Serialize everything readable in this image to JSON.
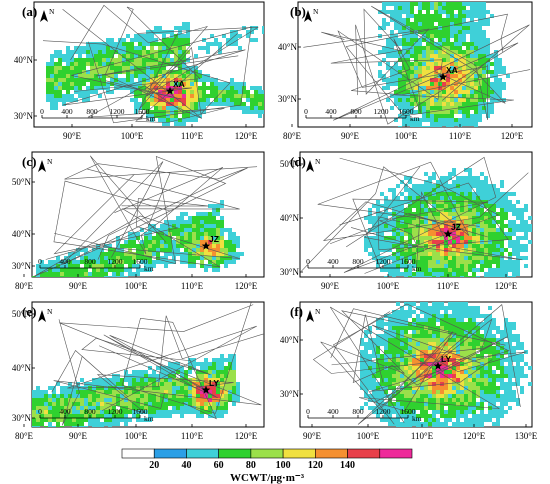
{
  "figure": {
    "panels": [
      {
        "label": "(a)",
        "city": "XA",
        "lat_ticks": [
          "40°N",
          "30°N"
        ],
        "lon_ticks": [
          "90°E",
          "100°E",
          "110°E",
          "120°E"
        ],
        "scale_labels": [
          "0",
          "400",
          "800",
          "1200",
          "1600"
        ],
        "scale_unit": "km"
      },
      {
        "label": "(b)",
        "city": "XA",
        "lat_ticks": [
          "40°N",
          "30°N"
        ],
        "lon_ticks": [
          "80°E",
          "90°E",
          "100°E",
          "110°E",
          "120°E"
        ],
        "scale_labels": [
          "0",
          "400",
          "800",
          "1200",
          "1600"
        ],
        "scale_unit": "km"
      },
      {
        "label": "(c)",
        "city": "JZ",
        "lat_ticks": [
          "50°N",
          "40°N",
          "30°N"
        ],
        "lon_ticks": [
          "80°E",
          "90°E",
          "100°E",
          "110°E",
          "120°E"
        ],
        "scale_labels": [
          "0",
          "400",
          "800",
          "1200",
          "1600"
        ],
        "scale_unit": "km"
      },
      {
        "label": "(d)",
        "city": "JZ",
        "lat_ticks": [
          "50°N",
          "40°N",
          "30°N"
        ],
        "lon_ticks": [
          "90°E",
          "100°E",
          "110°E",
          "120°E"
        ],
        "scale_labels": [
          "0",
          "400",
          "800",
          "1200",
          "1600"
        ],
        "scale_unit": "km"
      },
      {
        "label": "(e)",
        "city": "LY",
        "lat_ticks": [
          "50°N",
          "40°N",
          "30°N"
        ],
        "lon_ticks": [
          "80°E",
          "90°E",
          "100°E",
          "110°E",
          "120°E"
        ],
        "scale_labels": [
          "0",
          "400",
          "800",
          "1200",
          "1600"
        ],
        "scale_unit": "km"
      },
      {
        "label": "(f)",
        "city": "LY",
        "lat_ticks": [
          "40°N",
          "30°N"
        ],
        "lon_ticks": [
          "90°E",
          "100°E",
          "110°E",
          "120°E",
          "130°E"
        ],
        "scale_labels": [
          "0",
          "400",
          "800",
          "1200",
          "1600"
        ],
        "scale_unit": "km"
      }
    ],
    "colorbar": {
      "ticks": [
        "20",
        "40",
        "60",
        "80",
        "100",
        "120",
        "140"
      ],
      "title": "WCWT/μg·m⁻³",
      "colors": [
        "#ffffff",
        "#2b9fe6",
        "#3fd0d8",
        "#2fd12f",
        "#9be04a",
        "#f0e040",
        "#f59030",
        "#e8404a",
        "#ee2a9a"
      ]
    },
    "north_arrow": "N"
  }
}
